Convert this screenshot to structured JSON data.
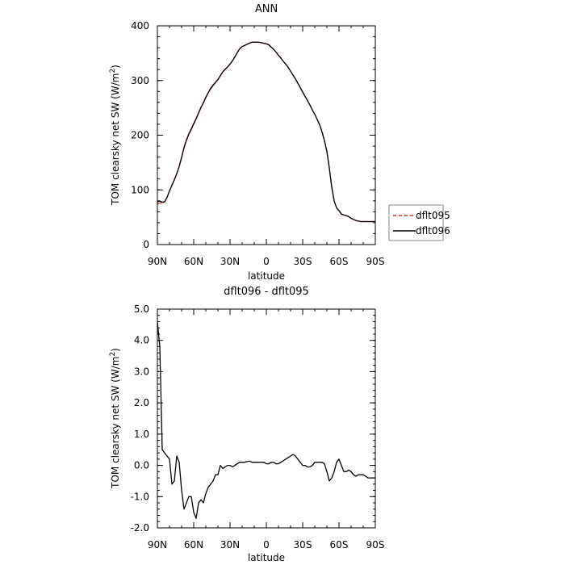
{
  "chart_data": [
    {
      "type": "line",
      "title": "ANN",
      "xlabel": "latitude",
      "ylabel": "TOM clearsky net SW (W/m²)",
      "ylabel_main": "TOM clearsky net SW (W/m",
      "ylabel_sup": "2",
      "ylabel_end": ")",
      "xlim": [
        90,
        -90
      ],
      "ylim": [
        0,
        400
      ],
      "x_ticks": [
        90,
        60,
        30,
        0,
        -30,
        -60,
        -90
      ],
      "x_tick_labels": [
        "90N",
        "60N",
        "30N",
        "0",
        "30S",
        "60S",
        "90S"
      ],
      "y_ticks": [
        0,
        100,
        200,
        300,
        400
      ],
      "y_tick_labels": [
        "0",
        "100",
        "200",
        "300",
        "400"
      ],
      "legend": {
        "placement": "right",
        "entries": [
          {
            "label": "dflt095",
            "color": "#d62728",
            "dash": "dashed"
          },
          {
            "label": "dflt096",
            "color": "#000000",
            "dash": "solid"
          }
        ]
      },
      "series": [
        {
          "name": "dflt095",
          "color": "#d62728",
          "x": [
            90,
            88,
            86,
            84,
            82,
            80,
            78,
            76,
            74,
            72,
            70,
            68,
            66,
            64,
            62,
            60,
            58,
            56,
            54,
            52,
            50,
            48,
            46,
            44,
            42,
            40,
            38,
            36,
            34,
            32,
            30,
            28,
            26,
            24,
            22,
            20,
            18,
            16,
            14,
            12,
            10,
            8,
            6,
            4,
            2,
            0,
            -2,
            -4,
            -6,
            -8,
            -10,
            -12,
            -14,
            -16,
            -18,
            -20,
            -22,
            -24,
            -26,
            -28,
            -30,
            -32,
            -34,
            -36,
            -38,
            -40,
            -42,
            -44,
            -46,
            -48,
            -50,
            -52,
            -54,
            -56,
            -58,
            -60,
            -62,
            -64,
            -66,
            -68,
            -70,
            -72,
            -74,
            -76,
            -78,
            -80,
            -82,
            -84,
            -86,
            -88,
            -90
          ],
          "y": [
            73,
            76,
            77,
            78,
            86,
            98,
            109,
            119,
            130,
            143,
            160,
            178,
            192,
            203,
            212,
            222,
            231,
            241,
            251,
            260,
            270,
            278,
            286,
            292,
            297,
            302,
            309,
            316,
            321,
            325,
            330,
            336,
            343,
            351,
            358,
            362,
            364,
            366,
            368,
            370,
            370,
            370,
            370,
            369,
            368,
            367,
            365,
            361,
            357,
            352,
            346,
            341,
            335,
            330,
            324,
            317,
            310,
            303,
            295,
            287,
            279,
            271,
            263,
            255,
            246,
            238,
            229,
            219,
            206,
            190,
            170,
            140,
            105,
            80,
            67,
            62,
            56,
            54,
            53,
            51,
            48,
            46,
            44,
            43,
            42,
            42,
            42,
            42,
            42,
            42,
            42
          ]
        },
        {
          "name": "dflt096",
          "color": "#000000",
          "x": [
            90,
            88,
            86,
            84,
            82,
            80,
            78,
            76,
            74,
            72,
            70,
            68,
            66,
            64,
            62,
            60,
            58,
            56,
            54,
            52,
            50,
            48,
            46,
            44,
            42,
            40,
            38,
            36,
            34,
            32,
            30,
            28,
            26,
            24,
            22,
            20,
            18,
            16,
            14,
            12,
            10,
            8,
            6,
            4,
            2,
            0,
            -2,
            -4,
            -6,
            -8,
            -10,
            -12,
            -14,
            -16,
            -18,
            -20,
            -22,
            -24,
            -26,
            -28,
            -30,
            -32,
            -34,
            -36,
            -38,
            -40,
            -42,
            -44,
            -46,
            -48,
            -50,
            -52,
            -54,
            -56,
            -58,
            -60,
            -62,
            -64,
            -66,
            -68,
            -70,
            -72,
            -74,
            -76,
            -78,
            -80,
            -82,
            -84,
            -86,
            -88,
            -90
          ],
          "y": [
            77.6,
            79.8,
            77.5,
            78.4,
            86.3,
            98.2,
            108.4,
            118.3,
            129.4,
            142.6,
            159.3,
            176.8,
            190.6,
            201.9,
            210.7,
            220.5,
            229.8,
            240.2,
            250.7,
            259.1,
            268.8,
            277.3,
            285.2,
            291.0,
            296.4,
            301.7,
            308.6,
            315.6,
            320.5,
            324.9,
            330.0,
            336.0,
            343.1,
            351.1,
            358.1,
            362.1,
            364.1,
            366.3,
            368.3,
            370.1,
            370.1,
            370.1,
            370.1,
            369.2,
            368.2,
            367.3,
            365.3,
            361.1,
            357.2,
            352.1,
            346.1,
            341.1,
            335.0,
            330.0,
            324.1,
            317.1,
            310.0,
            303.0,
            295.0,
            287.0,
            279.0,
            271.0,
            263.0,
            255.0,
            246.0,
            238.0,
            229.0,
            219.0,
            206.0,
            190.0,
            170.0,
            140.0,
            105.0,
            80.0,
            67.0,
            62.0,
            56.0,
            54.0,
            53.0,
            51.0,
            48.0,
            46.0,
            44.0,
            43.0,
            42.0,
            42.0,
            42.0,
            42.0,
            42.0,
            42.0,
            42.0
          ]
        }
      ]
    },
    {
      "type": "line",
      "title": "dflt096 - dflt095",
      "xlabel": "latitude",
      "ylabel": "TOM clearsky net SW (W/m²)",
      "ylabel_main": "TOM clearsky net SW (W/m",
      "ylabel_sup": "2",
      "ylabel_end": ")",
      "xlim": [
        90,
        -90
      ],
      "ylim": [
        -2,
        5
      ],
      "x_ticks": [
        90,
        60,
        30,
        0,
        -30,
        -60,
        -90
      ],
      "x_tick_labels": [
        "90N",
        "60N",
        "30N",
        "0",
        "30S",
        "60S",
        "90S"
      ],
      "y_ticks": [
        -2,
        -1,
        0,
        1,
        2,
        3,
        4,
        5
      ],
      "y_tick_labels": [
        "-2.0",
        "-1.0",
        "0.0",
        "1.0",
        "2.0",
        "3.0",
        "4.0",
        "5.0"
      ],
      "series": [
        {
          "color": "#000000",
          "x": [
            90,
            88,
            86,
            84,
            82,
            80,
            78,
            76,
            74,
            72,
            70,
            68,
            66,
            64,
            62,
            60,
            58,
            56,
            54,
            52,
            50,
            48,
            46,
            44,
            42,
            40,
            38,
            36,
            34,
            32,
            30,
            28,
            26,
            24,
            22,
            20,
            18,
            16,
            14,
            12,
            10,
            8,
            6,
            4,
            2,
            0,
            -2,
            -4,
            -6,
            -8,
            -10,
            -12,
            -14,
            -16,
            -18,
            -20,
            -22,
            -24,
            -26,
            -28,
            -30,
            -32,
            -34,
            -36,
            -38,
            -40,
            -42,
            -44,
            -46,
            -48,
            -50,
            -52,
            -54,
            -56,
            -58,
            -60,
            -62,
            -64,
            -66,
            -68,
            -70,
            -72,
            -74,
            -76,
            -78,
            -80,
            -82,
            -84,
            -86,
            -88,
            -90
          ],
          "y": [
            4.6,
            3.8,
            0.5,
            0.4,
            0.3,
            0.2,
            -0.6,
            -0.5,
            0.3,
            0.1,
            -0.8,
            -1.4,
            -1.2,
            -1.0,
            -1.0,
            -1.5,
            -1.7,
            -1.2,
            -1.1,
            -1.2,
            -0.9,
            -0.7,
            -0.6,
            -0.5,
            -0.3,
            -0.3,
            0.0,
            -0.1,
            -0.05,
            0.0,
            0.0,
            -0.05,
            0.0,
            0.05,
            0.1,
            0.1,
            0.1,
            0.12,
            0.14,
            0.1,
            0.1,
            0.1,
            0.1,
            0.1,
            0.1,
            0.05,
            0.05,
            0.1,
            0.1,
            0.05,
            0.05,
            0.1,
            0.15,
            0.2,
            0.25,
            0.3,
            0.35,
            0.3,
            0.2,
            0.1,
            0.0,
            0.0,
            -0.05,
            -0.05,
            0.0,
            0.1,
            0.1,
            0.1,
            0.1,
            0.05,
            -0.2,
            -0.5,
            -0.4,
            -0.2,
            0.1,
            0.2,
            0.0,
            -0.2,
            -0.2,
            -0.15,
            -0.2,
            -0.3,
            -0.35,
            -0.3,
            -0.3,
            -0.3,
            -0.35,
            -0.4,
            -0.4,
            -0.4,
            -0.4
          ]
        }
      ]
    }
  ]
}
